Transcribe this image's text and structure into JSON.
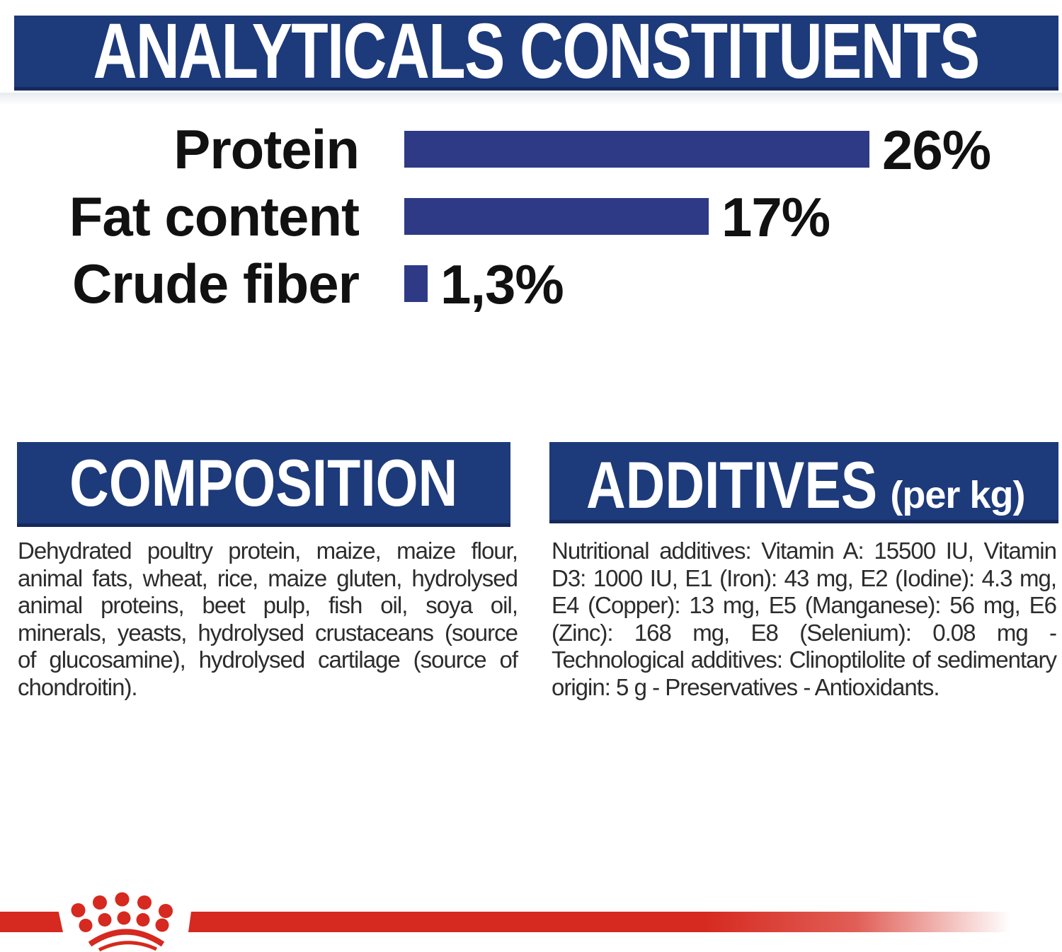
{
  "header": {
    "title": "ANALYTICALS CONSTITUENTS",
    "banner_color": "#1d3a7a",
    "banner_edge_color": "#15295c",
    "text_color": "#ffffff"
  },
  "chart_data": {
    "type": "bar",
    "orientation": "horizontal",
    "title": "ANALYTICALS CONSTITUENTS",
    "categories": [
      "Protein",
      "Fat content",
      "Crude fiber"
    ],
    "values": [
      26,
      17,
      1.3
    ],
    "value_labels": [
      "26%",
      "17%",
      "1,3%"
    ],
    "unit": "%",
    "xlim": [
      0,
      26
    ],
    "grid": false,
    "legend": false,
    "bar_color": "#2e3a85",
    "label_color": "#111111"
  },
  "sections": {
    "composition": {
      "title": "COMPOSITION",
      "body": "Dehydrated poultry protein, maize, maize flour, animal fats, wheat, rice, maize gluten, hydrolysed animal proteins, beet pulp, fish oil, soya oil, minerals, yeasts, hydrolysed crustaceans (source of glucosamine), hydrolysed cartilage (source of chondroitin)."
    },
    "additives": {
      "title": "ADDITIVES",
      "title_suffix": "(per kg)",
      "body": "Nutritional additives: Vitamin A: 15500 IU, Vitamin D3: 1000 IU, E1 (Iron): 43 mg, E2 (Iodine): 4.3 mg, E4 (Copper): 13 mg, E5 (Manganese): 56 mg, E6 (Zinc): 168 mg, E8 (Selenium): 0.08 mg - Technological additives: Clinoptilolite of sedimentary origin: 5 g - Preservatives - Antioxidants."
    }
  },
  "footer": {
    "brand_icon": "royal-canin-crown-icon",
    "ribbon_color": "#d6291f"
  }
}
